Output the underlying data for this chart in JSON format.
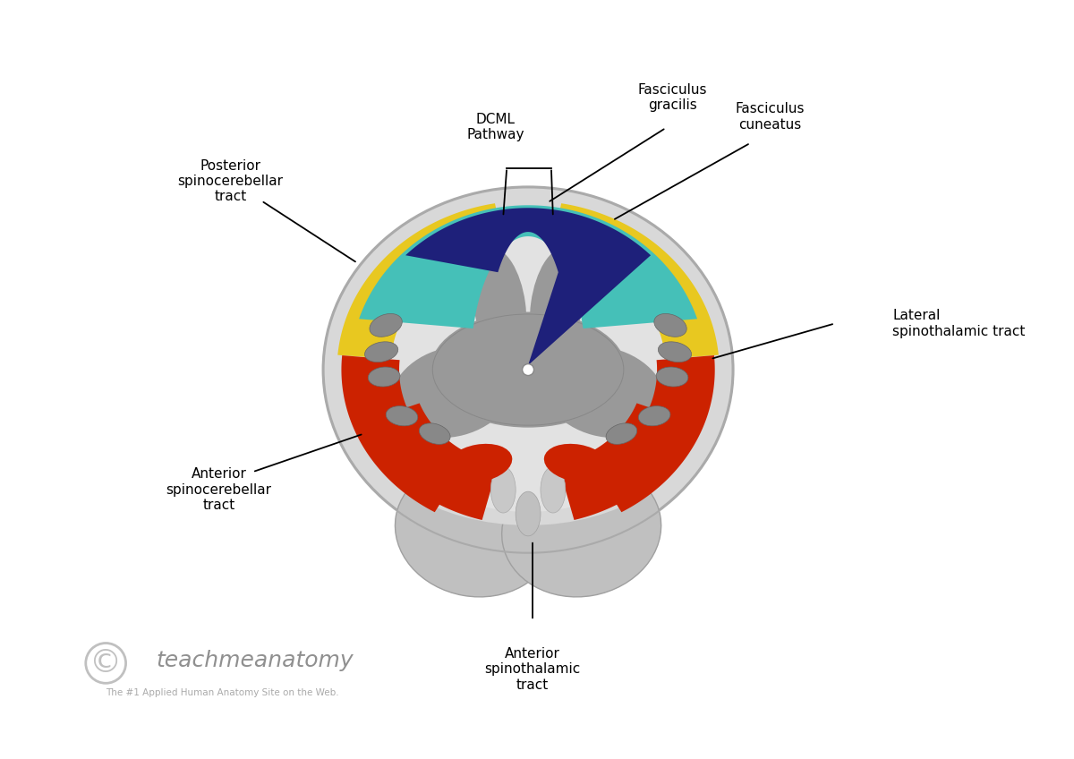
{
  "bg_color": "#ffffff",
  "labels": {
    "dcml": "DCML\nPathway",
    "fasciculus_gracilis": "Fasciculus\ngracilis",
    "fasciculus_cuneatus": "Fasciculus\ncuneatus",
    "posterior_spino": "Posterior\nspinocerebellar\ntract",
    "lateral_spino": "Lateral\nspinothalamic tract",
    "anterior_spino_cereb": "Anterior\nspinocerebellar\ntract",
    "anterior_spino_thal": "Anterior\nspinothalamic\ntract"
  },
  "colors": {
    "outer_cord": "#c8c8c8",
    "outer_cord_edge": "#aaaaaa",
    "outer_cord2": "#d8d8d8",
    "gray_matter": "#999999",
    "gray_matter2": "#888888",
    "white_inner": "#e2e2e2",
    "teal": "#45c0b8",
    "blue": "#1e207a",
    "yellow": "#e8c820",
    "red": "#cc2200",
    "small_oval": "#888888",
    "small_oval_edge": "#666666",
    "bottom_lobe": "#c0c0c0",
    "bottom_lobe_edge": "#a0a0a0",
    "watermark_circle": "#c0c0c0",
    "watermark_text": "#909090",
    "watermark_sub": "#aaaaaa"
  },
  "copyright_text": "teachmeanatomy",
  "copyright_sub": "The #1 Applied Human Anatomy Site on the Web."
}
